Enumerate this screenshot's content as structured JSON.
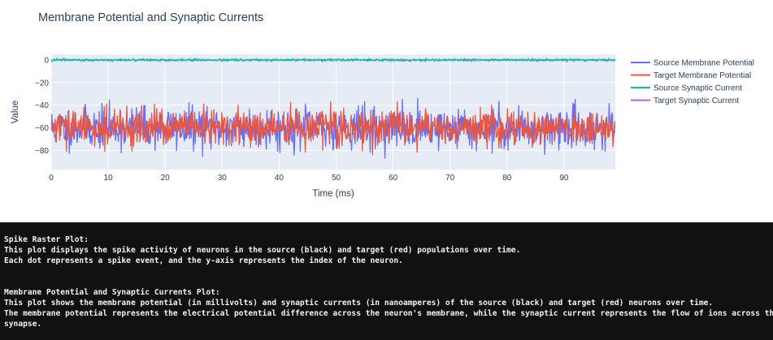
{
  "chart_data": {
    "type": "line",
    "title": "Membrane Potential and Synaptic Currents",
    "xlabel": "Time (ms)",
    "ylabel": "Value",
    "xlim": [
      0,
      99
    ],
    "ylim": [
      -97,
      5
    ],
    "x_ticks": [
      0,
      10,
      20,
      30,
      40,
      50,
      60,
      70,
      80,
      90
    ],
    "y_ticks": [
      0,
      -20,
      -40,
      -60,
      -80
    ],
    "grid": true,
    "legend_position": "right",
    "series": [
      {
        "name": "Source Membrane Potential",
        "color": "#636efa",
        "mean": -60,
        "std": 9,
        "approx_range": [
          -92,
          -30
        ]
      },
      {
        "name": "Target Membrane Potential",
        "color": "#ef553b",
        "mean": -60,
        "std": 8,
        "approx_range": [
          -93,
          -37
        ]
      },
      {
        "name": "Source Synaptic Current",
        "color": "#00cc96",
        "mean": 0,
        "std": 0.5,
        "approx_range": [
          -1.5,
          1.5
        ]
      },
      {
        "name": "Target Synaptic Current",
        "color": "#ab63fa",
        "mean": 0,
        "std": 0.5,
        "approx_range": [
          -1.5,
          1.5
        ]
      }
    ]
  },
  "console": {
    "lines": [
      "Spike Raster Plot:",
      "This plot displays the spike activity of neurons in the source (black) and target (red) populations over time.",
      "Each dot represents a spike event, and the y-axis represents the index of the neuron.",
      "",
      "",
      "Membrane Potential and Synaptic Currents Plot:",
      "This plot shows the membrane potential (in millivolts) and synaptic currents (in nanoamperes) of the source (black) and target (red) neurons over time.",
      "The membrane potential represents the electrical potential difference across the neuron's membrane, while the synaptic current represents the flow of ions across the",
      "synapse."
    ]
  }
}
